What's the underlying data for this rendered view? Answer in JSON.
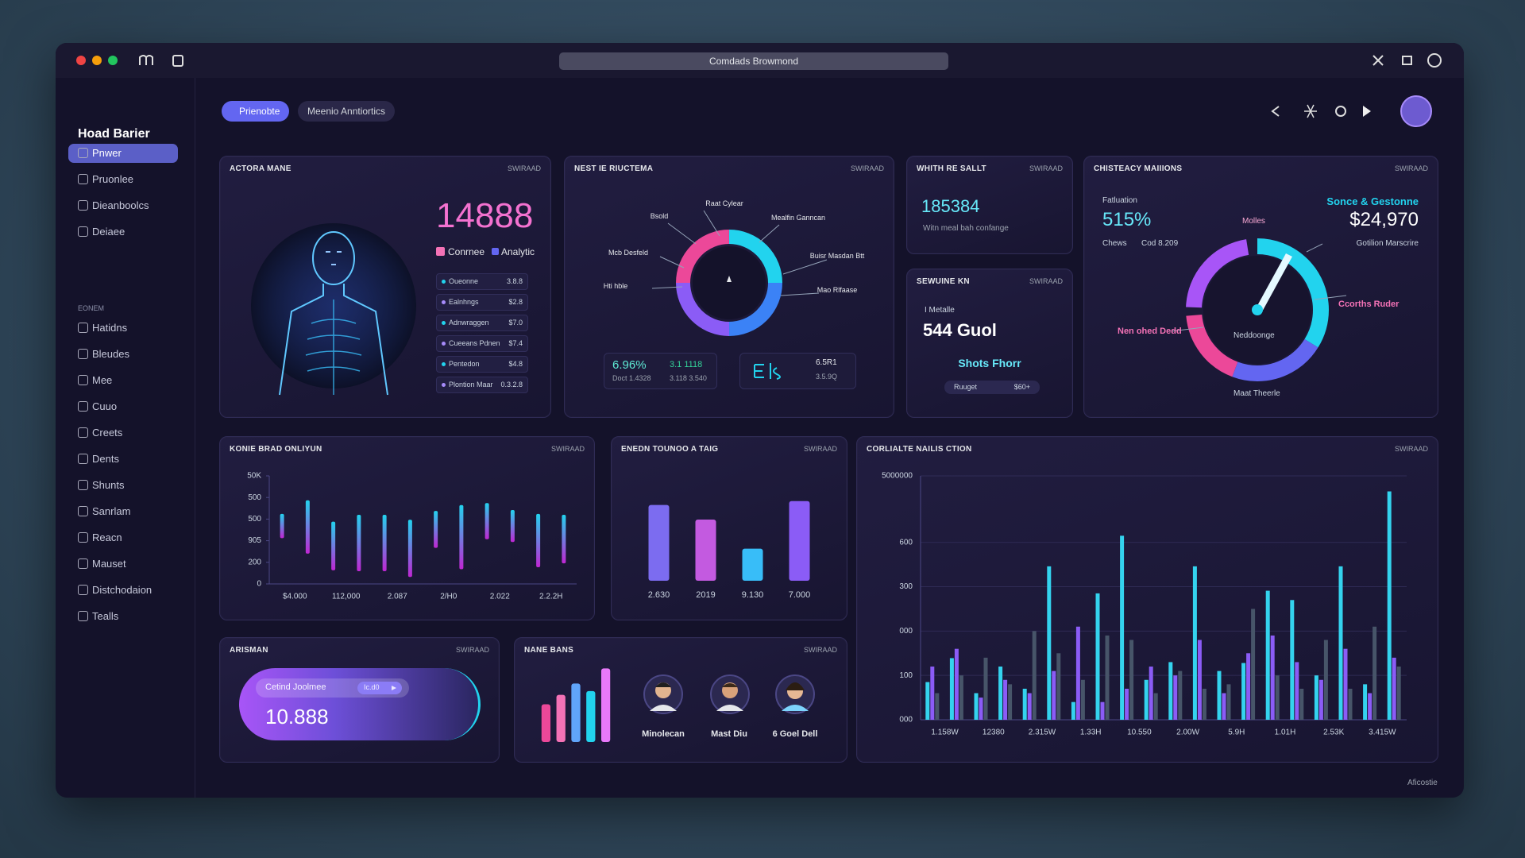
{
  "window": {
    "address": "Comdads Browmond"
  },
  "sidebar": {
    "brand": "Hoad Barier",
    "nav": [
      "Pnwer",
      "Pruonlee",
      "Dieanboolcs",
      "Deiaee"
    ],
    "section": "EONEM",
    "nav2": [
      "Hatidns",
      "Bleudes",
      "Mee",
      "Cuuo",
      "Creets",
      "Dents",
      "Shunts",
      "Sanrlam",
      "Reacn",
      "Mauset",
      "Distchodaion",
      "Tealls"
    ]
  },
  "tabs": [
    "Prienobte",
    "Meenio Anntiortics"
  ],
  "panels": {
    "anatomy": {
      "title": "ACTORA MANE",
      "tag": "SWIRAAD",
      "value": 14888,
      "legend": [
        "Conrnee",
        "Analytic"
      ],
      "rows": [
        [
          "Oueonne",
          "3.8.8"
        ],
        [
          "Ealnhngs",
          "$2.8"
        ],
        [
          "Adnwraggen",
          "$7.0"
        ],
        [
          "Cueeans Pdnen",
          "$7.4"
        ],
        [
          "Pentedon",
          "$4.8"
        ],
        [
          "Plontion Maar",
          "0.3.2.8"
        ]
      ]
    },
    "donut": {
      "title": "NEST IE RIUCTEMA",
      "tag": "SWIRAAD",
      "labels": [
        "Raat Cylear",
        "Bsold",
        "Mealfin Ganncan",
        "Mcb Desfeld",
        "Buisr Masdan Btt",
        "Hti hble",
        "Mao Rlfaase"
      ],
      "stat1": [
        "6.96%",
        "Doct 1.4328",
        "3.1 1118",
        "3.118 3.540"
      ],
      "stat2": [
        "6.5R1",
        "3.5.9Q"
      ]
    },
    "sales": {
      "title": "WHITH RE SALLT",
      "tag": "SWIRAAD",
      "value": 185384,
      "note": "Witn meal bah confange"
    },
    "service": {
      "title": "SEWUINE KN",
      "tag": "SWIRAAD",
      "label": "I Metalle",
      "value": "544 Guol",
      "caption": "Shots Fhorr",
      "row": [
        "Ruuget",
        "$60+"
      ]
    },
    "gauge": {
      "title": "CHISTEACY MAIIIONS",
      "tag": "SWIRAAD",
      "left": [
        "Fatluation",
        "515%",
        "Chews",
        "Cod 8.209"
      ],
      "right": [
        "Sonce & Gestonne",
        "$24,970",
        "Gotilion Marscrire"
      ],
      "labels": [
        "Molles",
        "Neddoonge",
        "Ccorths Ruder",
        "Nen ohed Dedd",
        "Maat Theerle"
      ]
    },
    "flow": {
      "title": "KONIE BRAD ONLIYUN",
      "tag": "SWIRAAD",
      "chart": {
        "type": "range-bar",
        "ylim": [
          0,
          500
        ],
        "yticks": [
          {
            "value": 500,
            "label": "50K"
          },
          {
            "value": 400,
            "label": "500"
          },
          {
            "value": 300,
            "label": "500"
          },
          {
            "value": 200,
            "label": "905"
          },
          {
            "value": 100,
            "label": "200"
          },
          0
        ],
        "xticks": [
          "$4.000",
          "112,000",
          "2.087",
          "2/H0",
          "2.022",
          "2.2.2H"
        ],
        "ranges": [
          [
            212,
            324
          ],
          [
            140,
            387
          ],
          [
            63,
            288
          ],
          [
            59,
            320
          ],
          [
            59,
            320
          ],
          [
            32,
            297
          ],
          [
            167,
            338
          ],
          [
            68,
            365
          ],
          [
            207,
            374
          ],
          [
            194,
            342
          ],
          [
            77,
            324
          ],
          [
            95,
            320
          ]
        ]
      }
    },
    "trend": {
      "title": "ENEDN TOUNOO A TAIG",
      "tag": "SWIRAAD",
      "chart": {
        "type": "bar",
        "ylim": [
          0,
          90
        ],
        "categories": [
          "2.630",
          "2019",
          "9.130",
          "7.000"
        ],
        "values": [
          78,
          63,
          33,
          82
        ],
        "colors": [
          "#7c6cf0",
          "#c35ae0",
          "#38bdf8",
          "#8b5cf6"
        ]
      }
    },
    "corr": {
      "title": "CORLIALTE NAILIS CTION",
      "tag": "SWIRAAD",
      "chart": {
        "type": "grouped-bar",
        "grid": true,
        "ylim": [
          0,
          550
        ],
        "yticks": [
          {
            "value": 550,
            "label": "5000000"
          },
          {
            "value": 400,
            "label": "600"
          },
          300,
          {
            "value": 200,
            "label": "000"
          },
          100,
          {
            "value": 0,
            "label": "000"
          }
        ],
        "xticks": [
          "1.158W",
          "12380",
          "2.315W",
          "1.33H",
          "10.550",
          "2.00W",
          "5.9H",
          "1.01H",
          "2.53K",
          "3.415W"
        ],
        "series": [
          {
            "color": "#34d3ee",
            "values": [
              85,
              139,
              60,
              120,
              70,
              346,
              40,
              285,
              415,
              90,
              130,
              346,
              110,
              128,
              291,
              270,
              100,
              346,
              80,
              515
            ]
          },
          {
            "color": "#8b5cf6",
            "values": [
              120,
              160,
              50,
              90,
              60,
              110,
              210,
              40,
              70,
              120,
              100,
              180,
              60,
              150,
              190,
              130,
              90,
              160,
              60,
              140
            ]
          },
          {
            "color": "#475569",
            "values": [
              60,
              100,
              140,
              80,
              200,
              150,
              90,
              190,
              180,
              60,
              110,
              70,
              80,
              250,
              100,
              70,
              180,
              70,
              210,
              120
            ]
          }
        ]
      }
    },
    "arisman": {
      "title": "ARISMAN",
      "tag": "SWIRAAD",
      "chip": "Cetind Joolmee",
      "chip_tag": "Ic.d0",
      "value": "10.888"
    },
    "names": {
      "title": "NANE BANS",
      "tag": "SWIRAAD",
      "people": [
        "Minolecan",
        "Mast Diu",
        "6 Goel Dell"
      ],
      "chart": {
        "type": "bar",
        "ylim": [
          0,
          80
        ],
        "values": [
          40,
          50,
          62,
          54,
          78
        ],
        "colors": [
          "#ec4899",
          "#f472b6",
          "#60a5fa",
          "#22d3ee",
          "#e879f9"
        ]
      }
    }
  },
  "footer": "Aficostie"
}
